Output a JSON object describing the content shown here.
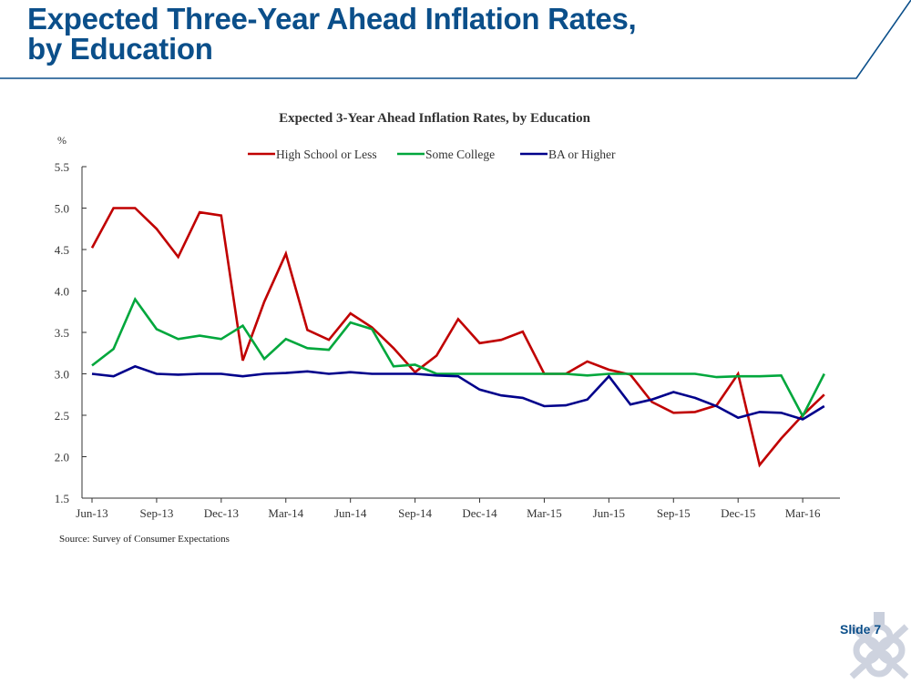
{
  "slide": {
    "title_line1": "Expected Three-Year Ahead Inflation Rates,",
    "title_line2": "by Education",
    "slide_label": "Slide 7",
    "source": "Source: Survey of Consumer Expectations",
    "accent_color": "#0b4f8a"
  },
  "chart_data": {
    "type": "line",
    "title": "Expected 3-Year Ahead Inflation Rates, by Education",
    "ylabel": "%",
    "xlabel": "",
    "ylim": [
      1.5,
      5.5
    ],
    "yticks": [
      "5.5",
      "5.0",
      "4.5",
      "4.0",
      "3.5",
      "3.0",
      "2.5",
      "2.0",
      "1.5"
    ],
    "ytick_values": [
      5.5,
      5.0,
      4.5,
      4.0,
      3.5,
      3.0,
      2.5,
      2.0,
      1.5
    ],
    "grid": false,
    "legend_position": "top",
    "x": [
      "Jun-13",
      "Jul-13",
      "Aug-13",
      "Sep-13",
      "Oct-13",
      "Nov-13",
      "Dec-13",
      "Jan-14",
      "Feb-14",
      "Mar-14",
      "Apr-14",
      "May-14",
      "Jun-14",
      "Jul-14",
      "Aug-14",
      "Sep-14",
      "Oct-14",
      "Nov-14",
      "Dec-14",
      "Jan-15",
      "Feb-15",
      "Mar-15",
      "Apr-15",
      "May-15",
      "Jun-15",
      "Jul-15",
      "Aug-15",
      "Sep-15",
      "Oct-15",
      "Nov-15",
      "Dec-15",
      "Jan-16",
      "Feb-16",
      "Mar-16",
      "Apr-16"
    ],
    "xtick_labels": [
      "Jun-13",
      "Sep-13",
      "Dec-13",
      "Mar-14",
      "Jun-14",
      "Sep-14",
      "Dec-14",
      "Mar-15",
      "Jun-15",
      "Sep-15",
      "Dec-15",
      "Mar-16"
    ],
    "series": [
      {
        "name": "High School or Less",
        "color": "#c00000",
        "values": [
          4.52,
          5.0,
          5.0,
          4.75,
          4.41,
          4.95,
          4.91,
          3.16,
          3.87,
          4.45,
          3.53,
          3.41,
          3.73,
          3.56,
          3.31,
          3.02,
          3.22,
          3.66,
          3.37,
          3.41,
          3.51,
          3.0,
          3.0,
          3.15,
          3.05,
          2.99,
          2.66,
          2.53,
          2.54,
          2.62,
          3.0,
          1.9,
          2.22,
          2.5,
          2.75
        ]
      },
      {
        "name": "Some College",
        "color": "#00a73c",
        "values": [
          3.1,
          3.3,
          3.9,
          3.54,
          3.42,
          3.46,
          3.42,
          3.58,
          3.18,
          3.42,
          3.31,
          3.29,
          3.62,
          3.54,
          3.09,
          3.11,
          3.0,
          3.0,
          3.0,
          3.0,
          3.0,
          3.0,
          3.0,
          2.98,
          3.0,
          3.0,
          3.0,
          3.0,
          3.0,
          2.96,
          2.97,
          2.97,
          2.98,
          2.49,
          3.0
        ]
      },
      {
        "name": "BA or Higher",
        "color": "#00008b",
        "values": [
          3.0,
          2.97,
          3.09,
          3.0,
          2.99,
          3.0,
          3.0,
          2.97,
          3.0,
          3.01,
          3.03,
          3.0,
          3.02,
          3.0,
          3.0,
          3.0,
          2.98,
          2.97,
          2.81,
          2.74,
          2.71,
          2.61,
          2.62,
          2.69,
          2.97,
          2.63,
          2.69,
          2.78,
          2.71,
          2.61,
          2.47,
          2.54,
          2.53,
          2.45,
          2.61
        ]
      }
    ]
  }
}
